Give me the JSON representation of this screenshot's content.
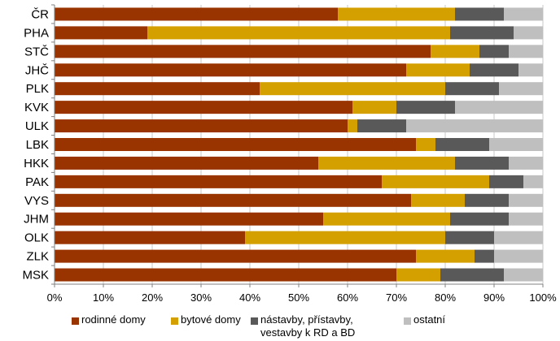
{
  "chart_data": {
    "type": "bar",
    "orientation": "horizontal",
    "stacked": true,
    "percent_stacked": true,
    "categories": [
      "ČR",
      "PHA",
      "STČ",
      "JHČ",
      "PLK",
      "KVK",
      "ULK",
      "LBK",
      "HKK",
      "PAK",
      "VYS",
      "JHM",
      "OLK",
      "ZLK",
      "MSK"
    ],
    "series": [
      {
        "name": "rodinné domy",
        "color": "#993300",
        "values": [
          58,
          19,
          77,
          72,
          42,
          61,
          60,
          74,
          54,
          67,
          73,
          55,
          39,
          74,
          70
        ]
      },
      {
        "name": "bytové domy",
        "color": "#D4A000",
        "values": [
          24,
          62,
          10,
          13,
          38,
          9,
          2,
          4,
          28,
          22,
          11,
          26,
          41,
          12,
          9
        ]
      },
      {
        "name": "nástavby, přístavby,\nvestavby k RD a BD",
        "color": "#595959",
        "values": [
          10,
          13,
          6,
          10,
          11,
          12,
          10,
          11,
          11,
          7,
          9,
          12,
          10,
          4,
          13
        ]
      },
      {
        "name": "ostatní",
        "color": "#BFBFBF",
        "values": [
          8,
          6,
          7,
          5,
          9,
          18,
          28,
          11,
          7,
          4,
          7,
          7,
          10,
          10,
          8
        ]
      }
    ],
    "xlim": [
      0,
      100
    ],
    "x_ticks": [
      "0%",
      "10%",
      "20%",
      "30%",
      "40%",
      "50%",
      "60%",
      "70%",
      "80%",
      "90%",
      "100%"
    ],
    "xlabel": "",
    "ylabel": "",
    "title": "",
    "grid": true,
    "legend_position": "bottom"
  }
}
